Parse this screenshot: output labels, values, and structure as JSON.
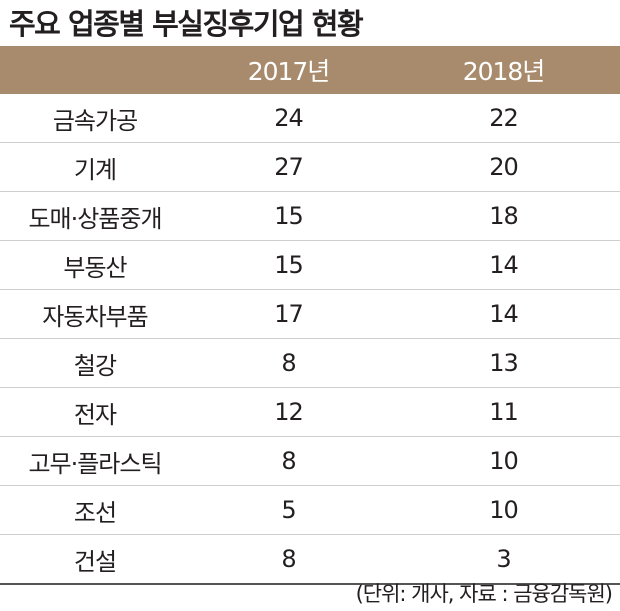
{
  "title": "주요 업종별 부실징후기업 현황",
  "table": {
    "headers": [
      "",
      "2017년",
      "2018년"
    ],
    "rows": [
      {
        "category": "금속가공",
        "y2017": "24",
        "y2018": "22"
      },
      {
        "category": "기계",
        "y2017": "27",
        "y2018": "20"
      },
      {
        "category": "도매·상품중개",
        "y2017": "15",
        "y2018": "18"
      },
      {
        "category": "부동산",
        "y2017": "15",
        "y2018": "14"
      },
      {
        "category": "자동차부품",
        "y2017": "17",
        "y2018": "14"
      },
      {
        "category": "철강",
        "y2017": "8",
        "y2018": "13"
      },
      {
        "category": "전자",
        "y2017": "12",
        "y2018": "11"
      },
      {
        "category": "고무·플라스틱",
        "y2017": "8",
        "y2018": "10"
      },
      {
        "category": "조선",
        "y2017": "5",
        "y2018": "10"
      },
      {
        "category": "건설",
        "y2017": "8",
        "y2018": "3"
      }
    ]
  },
  "source": "(단위: 개사, 자료 : 금융감독원)",
  "colors": {
    "header_bg": "#a88b6c",
    "header_text": "#ffffff",
    "text": "#231f20"
  }
}
